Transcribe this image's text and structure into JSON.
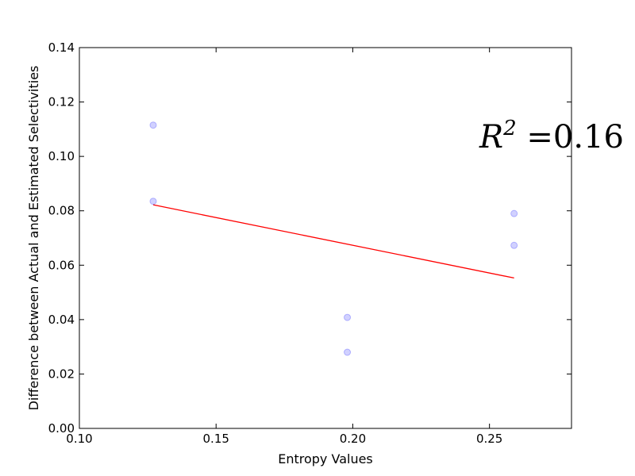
{
  "chart_data": {
    "type": "scatter",
    "xlabel": "Entropy Values",
    "ylabel": "Difference between Actual and Estimated Selectivities",
    "xlim": [
      0.1,
      0.28
    ],
    "ylim": [
      0.0,
      0.14
    ],
    "x_ticks": [
      "0.10",
      "0.15",
      "0.20",
      "0.25"
    ],
    "y_ticks": [
      "0.00",
      "0.02",
      "0.04",
      "0.06",
      "0.08",
      "0.10",
      "0.12",
      "0.14"
    ],
    "x_tick_values": [
      0.1,
      0.15,
      0.2,
      0.25
    ],
    "y_tick_values": [
      0.0,
      0.02,
      0.04,
      0.06,
      0.08,
      0.1,
      0.12,
      0.14
    ],
    "points": [
      {
        "x": 0.127,
        "y": 0.1115
      },
      {
        "x": 0.127,
        "y": 0.0835
      },
      {
        "x": 0.198,
        "y": 0.0408
      },
      {
        "x": 0.198,
        "y": 0.028
      },
      {
        "x": 0.259,
        "y": 0.079
      },
      {
        "x": 0.259,
        "y": 0.0673
      }
    ],
    "fit_line": {
      "x": [
        0.127,
        0.259
      ],
      "y": [
        0.0822,
        0.0553
      ]
    },
    "annotation": {
      "prefix": "R",
      "superscript": "2",
      "suffix": " =0.16"
    },
    "grid": false,
    "colors": {
      "points": "#0000ff",
      "fit_line": "#ff0000",
      "axes": "#000000"
    }
  }
}
